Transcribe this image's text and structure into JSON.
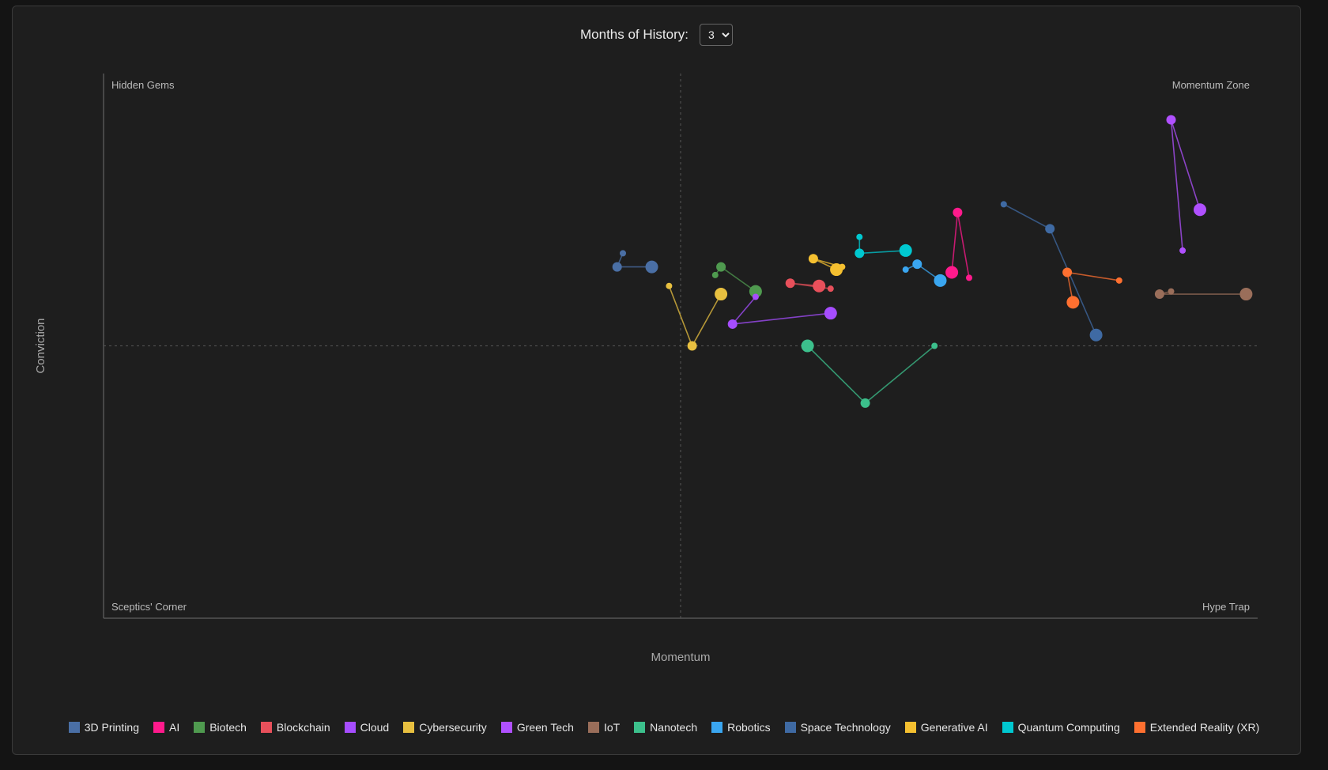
{
  "controls": {
    "history_label": "Months of History:",
    "history_value": "3",
    "history_options": [
      "3"
    ]
  },
  "chart_data": {
    "type": "scatter",
    "xlabel": "Momentum",
    "ylabel": "Conviction",
    "xlim": [
      -1,
      1
    ],
    "ylim": [
      -1,
      1
    ],
    "grid": false,
    "legend_position": "bottom",
    "quadrant_labels": {
      "top_left": "Hidden Gems",
      "top_right": "Momentum Zone",
      "bottom_left": "Sceptics' Corner",
      "bottom_right": "Hype Trap"
    },
    "series": [
      {
        "name": "3D Printing",
        "color": "#4a6fa5",
        "points": [
          [
            -0.1,
            0.34
          ],
          [
            -0.11,
            0.29
          ],
          [
            -0.05,
            0.29
          ]
        ]
      },
      {
        "name": "AI",
        "color": "#ff1a8c",
        "points": [
          [
            0.5,
            0.25
          ],
          [
            0.48,
            0.49
          ],
          [
            0.47,
            0.27
          ]
        ]
      },
      {
        "name": "Biotech",
        "color": "#4f9a4f",
        "points": [
          [
            0.06,
            0.26
          ],
          [
            0.07,
            0.29
          ],
          [
            0.13,
            0.2
          ]
        ]
      },
      {
        "name": "Blockchain",
        "color": "#e8505b",
        "points": [
          [
            0.26,
            0.21
          ],
          [
            0.19,
            0.23
          ],
          [
            0.24,
            0.22
          ]
        ]
      },
      {
        "name": "Cloud",
        "color": "#a64dff",
        "points": [
          [
            0.13,
            0.18
          ],
          [
            0.09,
            0.08
          ],
          [
            0.26,
            0.12
          ]
        ]
      },
      {
        "name": "Cybersecurity",
        "color": "#e8c040",
        "points": [
          [
            -0.02,
            0.22
          ],
          [
            0.02,
            0.0
          ],
          [
            0.07,
            0.19
          ]
        ]
      },
      {
        "name": "Green Tech",
        "color": "#b050ff",
        "points": [
          [
            0.87,
            0.35
          ],
          [
            0.85,
            0.83
          ],
          [
            0.9,
            0.5
          ]
        ]
      },
      {
        "name": "IoT",
        "color": "#9a6e5a",
        "points": [
          [
            0.85,
            0.2
          ],
          [
            0.83,
            0.19
          ],
          [
            0.98,
            0.19
          ]
        ]
      },
      {
        "name": "Nanotech",
        "color": "#3cc08c",
        "points": [
          [
            0.44,
            0.0
          ],
          [
            0.32,
            -0.21
          ],
          [
            0.22,
            0.0
          ]
        ]
      },
      {
        "name": "Robotics",
        "color": "#3aa6f0",
        "points": [
          [
            0.39,
            0.28
          ],
          [
            0.41,
            0.3
          ],
          [
            0.45,
            0.24
          ]
        ]
      },
      {
        "name": "Space Technology",
        "color": "#3f6aa3",
        "points": [
          [
            0.56,
            0.52
          ],
          [
            0.64,
            0.43
          ],
          [
            0.72,
            0.04
          ]
        ]
      },
      {
        "name": "Generative AI",
        "color": "#f5c030",
        "points": [
          [
            0.28,
            0.29
          ],
          [
            0.23,
            0.32
          ],
          [
            0.27,
            0.28
          ]
        ]
      },
      {
        "name": "Quantum Computing",
        "color": "#00c8d0",
        "points": [
          [
            0.31,
            0.4
          ],
          [
            0.31,
            0.34
          ],
          [
            0.39,
            0.35
          ]
        ]
      },
      {
        "name": "Extended Reality (XR)",
        "color": "#ff7030",
        "points": [
          [
            0.76,
            0.24
          ],
          [
            0.67,
            0.27
          ],
          [
            0.68,
            0.16
          ]
        ]
      }
    ]
  }
}
